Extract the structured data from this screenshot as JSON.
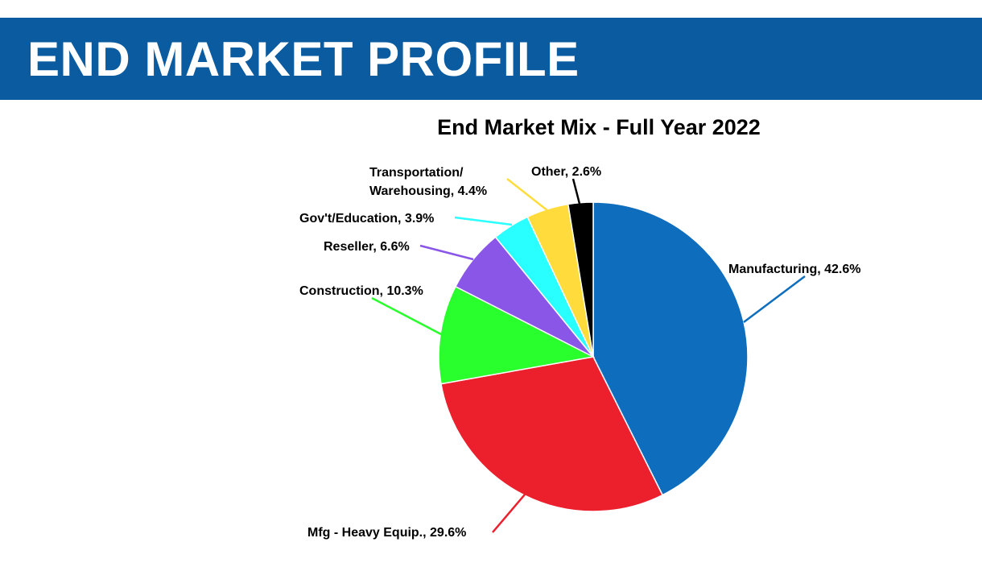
{
  "header": {
    "title": "END MARKET PROFILE"
  },
  "colors": {
    "banner": "#0a5ba0",
    "background": "#ffffff"
  },
  "chart_data": {
    "type": "pie",
    "title": "End Market Mix - Full Year 2022",
    "start_angle_deg": 0,
    "direction": "clockwise",
    "legend": "none",
    "slices": [
      {
        "label": "Manufacturing",
        "value": 42.6,
        "display": "Manufacturing, 42.6%",
        "color": "#0e6dbd"
      },
      {
        "label": "Mfg - Heavy Equip.",
        "value": 29.6,
        "display": "Mfg - Heavy Equip., 29.6%",
        "color": "#ec1f2d"
      },
      {
        "label": "Construction",
        "value": 10.3,
        "display": "Construction, 10.3%",
        "color": "#2aff2e"
      },
      {
        "label": "Reseller",
        "value": 6.6,
        "display": "Reseller, 6.6%",
        "color": "#8a56e8"
      },
      {
        "label": "Gov't/Education",
        "value": 3.9,
        "display": "Gov't/Education, 3.9%",
        "color": "#2affff"
      },
      {
        "label": "Transportation/ Warehousing",
        "value": 4.4,
        "display_lines": [
          "Transportation/",
          "Warehousing, 4.4%"
        ],
        "color": "#ffdc3b"
      },
      {
        "label": "Other",
        "value": 2.6,
        "display": "Other, 2.6%",
        "color": "#000000"
      }
    ]
  }
}
